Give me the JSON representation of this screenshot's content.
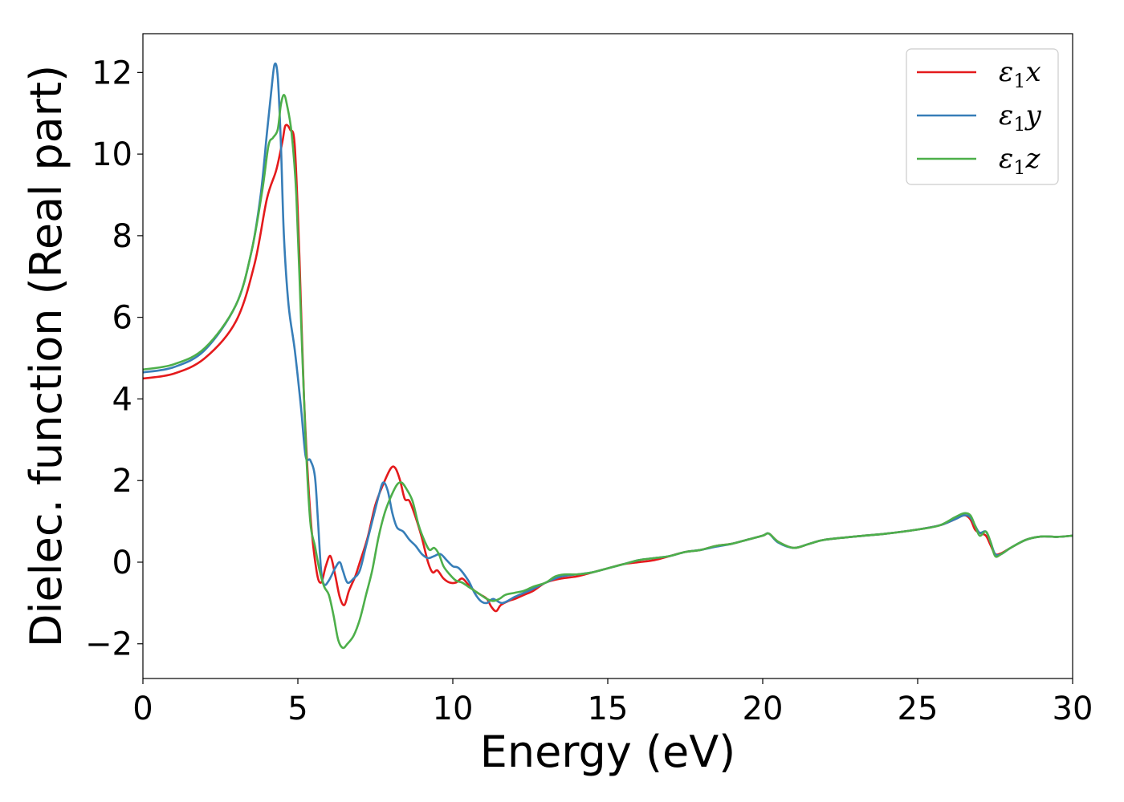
{
  "chart_data": {
    "type": "line",
    "title": "",
    "xlabel": "Energy (eV)",
    "ylabel": "Dielec. function (Real part)",
    "xlim": [
      0,
      30
    ],
    "ylim": [
      -2.85,
      12.95
    ],
    "xticks": [
      0,
      5,
      10,
      15,
      20,
      25,
      30
    ],
    "yticks": [
      -2,
      0,
      2,
      4,
      6,
      8,
      10,
      12
    ],
    "xtick_labels": [
      "0",
      "5",
      "10",
      "15",
      "20",
      "25",
      "30"
    ],
    "ytick_labels": [
      "−2",
      "0",
      "2",
      "4",
      "6",
      "8",
      "10",
      "12"
    ],
    "grid": false,
    "legend_position": "top-right",
    "series": [
      {
        "name": "ε1x",
        "legend_main": "ε",
        "legend_sub": "1",
        "legend_tail": "x",
        "color": "#e41a1c",
        "points": [
          [
            0,
            4.5
          ],
          [
            1,
            4.62
          ],
          [
            2,
            5.0
          ],
          [
            3,
            5.9
          ],
          [
            3.6,
            7.3
          ],
          [
            4.0,
            8.9
          ],
          [
            4.3,
            9.6
          ],
          [
            4.5,
            10.3
          ],
          [
            4.6,
            10.7
          ],
          [
            4.75,
            10.6
          ],
          [
            4.9,
            10.2
          ],
          [
            5.05,
            7.5
          ],
          [
            5.2,
            4.0
          ],
          [
            5.4,
            1.2
          ],
          [
            5.6,
            -0.2
          ],
          [
            5.75,
            -0.5
          ],
          [
            5.9,
            -0.1
          ],
          [
            6.05,
            0.15
          ],
          [
            6.2,
            -0.3
          ],
          [
            6.35,
            -0.85
          ],
          [
            6.5,
            -1.05
          ],
          [
            6.65,
            -0.7
          ],
          [
            6.85,
            -0.35
          ],
          [
            7.0,
            0.0
          ],
          [
            7.25,
            0.6
          ],
          [
            7.5,
            1.4
          ],
          [
            7.75,
            1.9
          ],
          [
            8.0,
            2.3
          ],
          [
            8.15,
            2.3
          ],
          [
            8.3,
            2.0
          ],
          [
            8.45,
            1.55
          ],
          [
            8.6,
            1.5
          ],
          [
            8.8,
            1.1
          ],
          [
            9.0,
            0.6
          ],
          [
            9.2,
            0.0
          ],
          [
            9.35,
            -0.25
          ],
          [
            9.5,
            -0.2
          ],
          [
            9.7,
            -0.4
          ],
          [
            9.9,
            -0.5
          ],
          [
            10.1,
            -0.5
          ],
          [
            10.3,
            -0.4
          ],
          [
            10.5,
            -0.55
          ],
          [
            10.7,
            -0.7
          ],
          [
            10.9,
            -0.8
          ],
          [
            11.1,
            -0.9
          ],
          [
            11.25,
            -1.1
          ],
          [
            11.4,
            -1.2
          ],
          [
            11.55,
            -1.05
          ],
          [
            11.8,
            -0.95
          ],
          [
            12.0,
            -0.9
          ],
          [
            12.3,
            -0.8
          ],
          [
            12.6,
            -0.7
          ],
          [
            13.0,
            -0.5
          ],
          [
            13.5,
            -0.4
          ],
          [
            14.0,
            -0.35
          ],
          [
            14.5,
            -0.25
          ],
          [
            15.0,
            -0.15
          ],
          [
            15.5,
            -0.05
          ],
          [
            16.0,
            0.0
          ],
          [
            16.5,
            0.05
          ],
          [
            17.0,
            0.15
          ],
          [
            17.5,
            0.25
          ],
          [
            18.0,
            0.3
          ],
          [
            18.5,
            0.4
          ],
          [
            19.0,
            0.45
          ],
          [
            19.5,
            0.55
          ],
          [
            20.0,
            0.65
          ],
          [
            20.2,
            0.7
          ],
          [
            20.5,
            0.5
          ],
          [
            21.0,
            0.35
          ],
          [
            21.5,
            0.45
          ],
          [
            22.0,
            0.55
          ],
          [
            23.0,
            0.63
          ],
          [
            24.0,
            0.7
          ],
          [
            25.0,
            0.8
          ],
          [
            25.7,
            0.9
          ],
          [
            26.2,
            1.05
          ],
          [
            26.5,
            1.15
          ],
          [
            26.7,
            1.05
          ],
          [
            26.85,
            0.8
          ],
          [
            27.0,
            0.72
          ],
          [
            27.2,
            0.65
          ],
          [
            27.35,
            0.42
          ],
          [
            27.5,
            0.2
          ],
          [
            27.7,
            0.22
          ],
          [
            28.0,
            0.35
          ],
          [
            28.5,
            0.55
          ],
          [
            29.0,
            0.63
          ],
          [
            29.5,
            0.62
          ],
          [
            30,
            0.65
          ]
        ]
      },
      {
        "name": "ε1y",
        "legend_main": "ε",
        "legend_sub": "1",
        "legend_tail": "y",
        "color": "#377eb8",
        "points": [
          [
            0,
            4.65
          ],
          [
            1,
            4.78
          ],
          [
            2,
            5.2
          ],
          [
            3,
            6.3
          ],
          [
            3.5,
            7.6
          ],
          [
            3.8,
            9.0
          ],
          [
            4.0,
            10.5
          ],
          [
            4.15,
            11.6
          ],
          [
            4.25,
            12.2
          ],
          [
            4.35,
            11.9
          ],
          [
            4.45,
            10.3
          ],
          [
            4.55,
            8.0
          ],
          [
            4.7,
            6.3
          ],
          [
            4.9,
            5.2
          ],
          [
            5.1,
            3.8
          ],
          [
            5.25,
            2.6
          ],
          [
            5.4,
            2.5
          ],
          [
            5.55,
            2.1
          ],
          [
            5.65,
            1.0
          ],
          [
            5.75,
            -0.2
          ],
          [
            5.85,
            -0.55
          ],
          [
            6.0,
            -0.45
          ],
          [
            6.2,
            -0.15
          ],
          [
            6.35,
            0.0
          ],
          [
            6.45,
            -0.2
          ],
          [
            6.6,
            -0.5
          ],
          [
            6.8,
            -0.4
          ],
          [
            7.0,
            -0.2
          ],
          [
            7.2,
            0.4
          ],
          [
            7.4,
            1.0
          ],
          [
            7.6,
            1.6
          ],
          [
            7.75,
            1.95
          ],
          [
            7.9,
            1.75
          ],
          [
            8.05,
            1.2
          ],
          [
            8.2,
            0.85
          ],
          [
            8.4,
            0.75
          ],
          [
            8.6,
            0.55
          ],
          [
            8.8,
            0.4
          ],
          [
            9.0,
            0.2
          ],
          [
            9.2,
            0.1
          ],
          [
            9.4,
            0.15
          ],
          [
            9.6,
            0.2
          ],
          [
            9.8,
            0.05
          ],
          [
            10.0,
            -0.1
          ],
          [
            10.2,
            -0.15
          ],
          [
            10.5,
            -0.45
          ],
          [
            10.7,
            -0.75
          ],
          [
            10.9,
            -0.95
          ],
          [
            11.1,
            -1.0
          ],
          [
            11.3,
            -0.9
          ],
          [
            11.6,
            -1.0
          ],
          [
            12.0,
            -0.85
          ],
          [
            12.3,
            -0.75
          ],
          [
            12.6,
            -0.65
          ],
          [
            13.0,
            -0.5
          ],
          [
            13.5,
            -0.35
          ],
          [
            14.0,
            -0.3
          ],
          [
            14.5,
            -0.25
          ],
          [
            15.0,
            -0.15
          ],
          [
            15.5,
            -0.05
          ],
          [
            16.0,
            0.05
          ],
          [
            16.5,
            0.1
          ],
          [
            17.0,
            0.15
          ],
          [
            17.5,
            0.25
          ],
          [
            18.0,
            0.3
          ],
          [
            18.5,
            0.38
          ],
          [
            19.0,
            0.45
          ],
          [
            19.5,
            0.55
          ],
          [
            20.0,
            0.65
          ],
          [
            20.2,
            0.7
          ],
          [
            20.5,
            0.48
          ],
          [
            21.0,
            0.35
          ],
          [
            21.5,
            0.45
          ],
          [
            22.0,
            0.55
          ],
          [
            23.0,
            0.63
          ],
          [
            24.0,
            0.7
          ],
          [
            25.0,
            0.8
          ],
          [
            25.7,
            0.9
          ],
          [
            26.2,
            1.05
          ],
          [
            26.5,
            1.15
          ],
          [
            26.7,
            1.1
          ],
          [
            26.85,
            0.9
          ],
          [
            27.0,
            0.72
          ],
          [
            27.2,
            0.75
          ],
          [
            27.35,
            0.5
          ],
          [
            27.5,
            0.2
          ],
          [
            27.7,
            0.2
          ],
          [
            28.0,
            0.35
          ],
          [
            28.5,
            0.55
          ],
          [
            29.0,
            0.63
          ],
          [
            29.5,
            0.62
          ],
          [
            30,
            0.65
          ]
        ]
      },
      {
        "name": "ε1z",
        "legend_main": "ε",
        "legend_sub": "1",
        "legend_tail": "z",
        "color": "#4daf4a",
        "points": [
          [
            0,
            4.72
          ],
          [
            1,
            4.85
          ],
          [
            2,
            5.25
          ],
          [
            3,
            6.3
          ],
          [
            3.5,
            7.6
          ],
          [
            3.85,
            9.1
          ],
          [
            4.05,
            10.2
          ],
          [
            4.2,
            10.4
          ],
          [
            4.35,
            10.6
          ],
          [
            4.45,
            11.2
          ],
          [
            4.55,
            11.45
          ],
          [
            4.65,
            11.2
          ],
          [
            4.8,
            10.5
          ],
          [
            4.95,
            9.0
          ],
          [
            5.1,
            6.0
          ],
          [
            5.25,
            3.0
          ],
          [
            5.4,
            1.0
          ],
          [
            5.55,
            0.4
          ],
          [
            5.7,
            -0.2
          ],
          [
            5.85,
            -0.6
          ],
          [
            6.0,
            -0.8
          ],
          [
            6.15,
            -1.3
          ],
          [
            6.3,
            -1.9
          ],
          [
            6.45,
            -2.1
          ],
          [
            6.6,
            -2.0
          ],
          [
            6.8,
            -1.8
          ],
          [
            7.0,
            -1.4
          ],
          [
            7.2,
            -0.8
          ],
          [
            7.4,
            -0.2
          ],
          [
            7.6,
            0.6
          ],
          [
            7.8,
            1.2
          ],
          [
            8.0,
            1.6
          ],
          [
            8.2,
            1.9
          ],
          [
            8.35,
            1.95
          ],
          [
            8.5,
            1.8
          ],
          [
            8.7,
            1.5
          ],
          [
            8.9,
            0.9
          ],
          [
            9.1,
            0.5
          ],
          [
            9.25,
            0.3
          ],
          [
            9.4,
            0.35
          ],
          [
            9.55,
            0.2
          ],
          [
            9.7,
            -0.1
          ],
          [
            9.9,
            -0.3
          ],
          [
            10.1,
            -0.45
          ],
          [
            10.3,
            -0.5
          ],
          [
            10.5,
            -0.6
          ],
          [
            10.7,
            -0.7
          ],
          [
            10.9,
            -0.8
          ],
          [
            11.1,
            -0.9
          ],
          [
            11.3,
            -0.95
          ],
          [
            11.5,
            -0.9
          ],
          [
            11.7,
            -0.8
          ],
          [
            12.0,
            -0.75
          ],
          [
            12.3,
            -0.7
          ],
          [
            12.6,
            -0.6
          ],
          [
            13.0,
            -0.5
          ],
          [
            13.3,
            -0.35
          ],
          [
            13.6,
            -0.3
          ],
          [
            14.0,
            -0.3
          ],
          [
            14.5,
            -0.25
          ],
          [
            15.0,
            -0.15
          ],
          [
            15.5,
            -0.05
          ],
          [
            16.0,
            0.05
          ],
          [
            16.5,
            0.1
          ],
          [
            17.0,
            0.15
          ],
          [
            17.5,
            0.25
          ],
          [
            18.0,
            0.3
          ],
          [
            18.5,
            0.4
          ],
          [
            19.0,
            0.45
          ],
          [
            19.5,
            0.55
          ],
          [
            20.0,
            0.65
          ],
          [
            20.2,
            0.7
          ],
          [
            20.5,
            0.5
          ],
          [
            21.0,
            0.35
          ],
          [
            21.5,
            0.45
          ],
          [
            22.0,
            0.55
          ],
          [
            23.0,
            0.63
          ],
          [
            24.0,
            0.7
          ],
          [
            25.0,
            0.8
          ],
          [
            25.7,
            0.9
          ],
          [
            26.2,
            1.1
          ],
          [
            26.5,
            1.2
          ],
          [
            26.7,
            1.15
          ],
          [
            26.85,
            0.9
          ],
          [
            27.0,
            0.65
          ],
          [
            27.2,
            0.75
          ],
          [
            27.35,
            0.5
          ],
          [
            27.5,
            0.15
          ],
          [
            27.7,
            0.2
          ],
          [
            28.0,
            0.35
          ],
          [
            28.5,
            0.55
          ],
          [
            29.0,
            0.63
          ],
          [
            29.5,
            0.62
          ],
          [
            30,
            0.65
          ]
        ]
      }
    ]
  }
}
